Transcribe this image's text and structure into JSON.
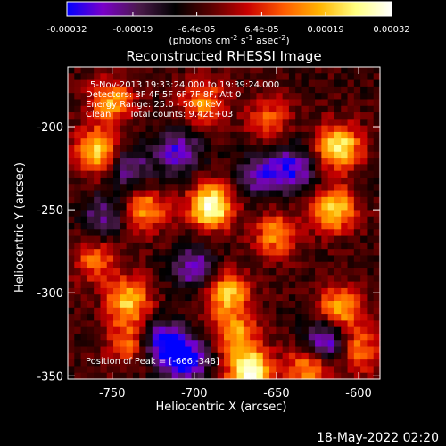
{
  "colorbar": {
    "ticks": [
      "-0.00032",
      "-0.00019",
      "-6.4e-05",
      "6.4e-05",
      "0.00019",
      "0.00032"
    ],
    "tick_values": [
      -0.00032,
      -0.00019,
      -6.4e-05,
      6.4e-05,
      0.00019,
      0.00032
    ],
    "range": [
      -0.00032,
      0.00032
    ],
    "unit_label": "(photons cm",
    "unit_exp1": "-2",
    "unit_mid": " s",
    "unit_exp2": "-1",
    "unit_mid2": " asec",
    "unit_exp3": "-2",
    "unit_end": ")",
    "colors": [
      "#0000ff",
      "#7a00c8",
      "#4a1a4a",
      "#000000",
      "#5a0000",
      "#c80000",
      "#ff5a00",
      "#ffb400",
      "#ffff80",
      "#ffffff"
    ]
  },
  "chart_data": {
    "type": "heatmap",
    "title": "Reconstructed RHESSI Image",
    "xlabel": "Heliocentric X (arcsec)",
    "ylabel": "Heliocentric Y (arcsec)",
    "xlim": [
      -777,
      -587
    ],
    "ylim": [
      -352,
      -164
    ],
    "x_ticks": [
      "-750",
      "-700",
      "-650",
      "-600"
    ],
    "x_tick_values": [
      -750,
      -700,
      -650,
      -600
    ],
    "y_ticks": [
      "-200",
      "-250",
      "-300",
      "-350"
    ],
    "y_tick_values": [
      -200,
      -250,
      -300,
      -350
    ],
    "peak": [
      -666,
      -348
    ],
    "grid": false,
    "annotations": [
      "5-Nov-2013 19:33:24.000 to 19:39:24.000",
      "Detectors: 3F 4F 5F 6F 7F 8F, Att 0",
      "Energy Range: 25.0 - 50.0 keV",
      "Clean",
      "Total counts: 9.42E+03",
      "Position of Peak = [-666,-348]"
    ],
    "sources": [
      {
        "x": -690,
        "y": -248,
        "value": 0.00031
      },
      {
        "x": -666,
        "y": -348,
        "value": 0.00032
      },
      {
        "x": -612,
        "y": -212,
        "value": 0.00026
      },
      {
        "x": -615,
        "y": -250,
        "value": 0.00022
      },
      {
        "x": -740,
        "y": -305,
        "value": 0.0002
      },
      {
        "x": -760,
        "y": -215,
        "value": 0.00022
      },
      {
        "x": -680,
        "y": -300,
        "value": 0.0002
      },
      {
        "x": -730,
        "y": -250,
        "value": 0.00016
      },
      {
        "x": -750,
        "y": -185,
        "value": 0.00017
      },
      {
        "x": -695,
        "y": -185,
        "value": 0.00014
      },
      {
        "x": -650,
        "y": -265,
        "value": 0.00015
      },
      {
        "x": -612,
        "y": -310,
        "value": 0.00018
      },
      {
        "x": -600,
        "y": -335,
        "value": 0.00014
      },
      {
        "x": -630,
        "y": -345,
        "value": 0.00018
      },
      {
        "x": -675,
        "y": -325,
        "value": 0.00016
      },
      {
        "x": -740,
        "y": -330,
        "value": 0.00012
      },
      {
        "x": -760,
        "y": -280,
        "value": 0.00011
      },
      {
        "x": -655,
        "y": -195,
        "value": 0.0001
      },
      {
        "x": -720,
        "y": -330,
        "value": -0.00018
      },
      {
        "x": -705,
        "y": -340,
        "value": -0.00022
      },
      {
        "x": -620,
        "y": -330,
        "value": -0.00021
      },
      {
        "x": -710,
        "y": -215,
        "value": -0.00015
      },
      {
        "x": -660,
        "y": -230,
        "value": -0.00012
      },
      {
        "x": -755,
        "y": -255,
        "value": -0.0001
      },
      {
        "x": -640,
        "y": -225,
        "value": -0.00016
      },
      {
        "x": -700,
        "y": -285,
        "value": -0.00013
      },
      {
        "x": -740,
        "y": -225,
        "value": -0.00011
      }
    ]
  },
  "footer": {
    "date": "18-May-2022 02:20"
  }
}
